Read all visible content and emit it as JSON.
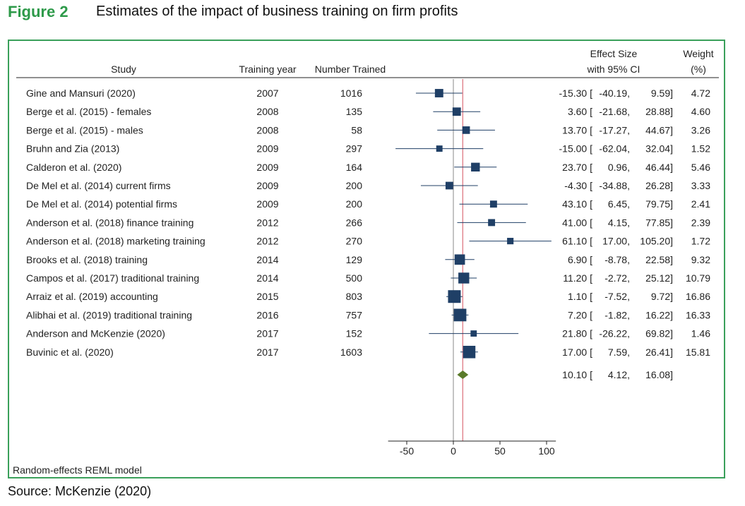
{
  "figure": {
    "label": "Figure 2",
    "title": "Estimates of the impact of business training on firm profits",
    "source": "Source: McKenzie (2020)",
    "model_note": "Random-effects REML model"
  },
  "columns": {
    "study": "Study",
    "year": "Training year",
    "trained": "Number Trained",
    "effect_line1": "Effect Size",
    "effect_line2": "with 95% CI",
    "weight_line1": "Weight",
    "weight_line2": "(%)"
  },
  "colors": {
    "accent": "#2e9a4a",
    "frame": "#3aa05a",
    "marker": "#1f3f66",
    "pooled": "#5a7a2a",
    "pooled_line": "#e0808a",
    "zero_line": "#8a8a8a"
  },
  "chart_data": {
    "type": "forest",
    "xlim": [
      -70,
      110
    ],
    "xticks": [
      -50,
      0,
      50,
      100
    ],
    "studies": [
      {
        "study": "Gine and Mansuri (2020)",
        "year": "2007",
        "trained": "1016",
        "es": -15.3,
        "lo": -40.19,
        "hi": 9.59,
        "weight": 4.72,
        "es_text": "-15.30",
        "lo_text": "-40.19,",
        "hi_text": "9.59]",
        "weight_text": "4.72"
      },
      {
        "study": "Berge et al. (2015) - females",
        "year": "2008",
        "trained": "135",
        "es": 3.6,
        "lo": -21.68,
        "hi": 28.88,
        "weight": 4.6,
        "es_text": "3.60",
        "lo_text": "-21.68,",
        "hi_text": "28.88]",
        "weight_text": "4.60"
      },
      {
        "study": "Berge et al. (2015) - males",
        "year": "2008",
        "trained": "58",
        "es": 13.7,
        "lo": -17.27,
        "hi": 44.67,
        "weight": 3.26,
        "es_text": "13.70",
        "lo_text": "-17.27,",
        "hi_text": "44.67]",
        "weight_text": "3.26"
      },
      {
        "study": "Bruhn and Zia (2013)",
        "year": "2009",
        "trained": "297",
        "es": -15.0,
        "lo": -62.04,
        "hi": 32.04,
        "weight": 1.52,
        "es_text": "-15.00",
        "lo_text": "-62.04,",
        "hi_text": "32.04]",
        "weight_text": "1.52"
      },
      {
        "study": "Calderon et al. (2020)",
        "year": "2009",
        "trained": "164",
        "es": 23.7,
        "lo": 0.96,
        "hi": 46.44,
        "weight": 5.46,
        "es_text": "23.70",
        "lo_text": "0.96,",
        "hi_text": "46.44]",
        "weight_text": "5.46"
      },
      {
        "study": "De Mel et al. (2014) current firms",
        "year": "2009",
        "trained": "200",
        "es": -4.3,
        "lo": -34.88,
        "hi": 26.28,
        "weight": 3.33,
        "es_text": "-4.30",
        "lo_text": "-34.88,",
        "hi_text": "26.28]",
        "weight_text": "3.33"
      },
      {
        "study": "De Mel et al. (2014) potential firms",
        "year": "2009",
        "trained": "200",
        "es": 43.1,
        "lo": 6.45,
        "hi": 79.75,
        "weight": 2.41,
        "es_text": "43.10",
        "lo_text": "6.45,",
        "hi_text": "79.75]",
        "weight_text": "2.41"
      },
      {
        "study": "Anderson et al. (2018) finance training",
        "year": "2012",
        "trained": "266",
        "es": 41.0,
        "lo": 4.15,
        "hi": 77.85,
        "weight": 2.39,
        "es_text": "41.00",
        "lo_text": "4.15,",
        "hi_text": "77.85]",
        "weight_text": "2.39"
      },
      {
        "study": "Anderson et al. (2018) marketing training",
        "year": "2012",
        "trained": "270",
        "es": 61.1,
        "lo": 17.0,
        "hi": 105.2,
        "weight": 1.72,
        "es_text": "61.10",
        "lo_text": "17.00,",
        "hi_text": "105.20]",
        "weight_text": "1.72"
      },
      {
        "study": "Brooks et al. (2018) training",
        "year": "2014",
        "trained": "129",
        "es": 6.9,
        "lo": -8.78,
        "hi": 22.58,
        "weight": 9.32,
        "es_text": "6.90",
        "lo_text": "-8.78,",
        "hi_text": "22.58]",
        "weight_text": "9.32"
      },
      {
        "study": "Campos et al. (2017) traditional training",
        "year": "2014",
        "trained": "500",
        "es": 11.2,
        "lo": -2.72,
        "hi": 25.12,
        "weight": 10.79,
        "es_text": "11.20",
        "lo_text": "-2.72,",
        "hi_text": "25.12]",
        "weight_text": "10.79"
      },
      {
        "study": "Arraiz et al. (2019) accounting",
        "year": "2015",
        "trained": "803",
        "es": 1.1,
        "lo": -7.52,
        "hi": 9.72,
        "weight": 16.86,
        "es_text": "1.10",
        "lo_text": "-7.52,",
        "hi_text": "9.72]",
        "weight_text": "16.86"
      },
      {
        "study": "Alibhai et al. (2019) traditional training",
        "year": "2016",
        "trained": "757",
        "es": 7.2,
        "lo": -1.82,
        "hi": 16.22,
        "weight": 16.33,
        "es_text": "7.20",
        "lo_text": "-1.82,",
        "hi_text": "16.22]",
        "weight_text": "16.33"
      },
      {
        "study": "Anderson and McKenzie (2020)",
        "year": "2017",
        "trained": "152",
        "es": 21.8,
        "lo": -26.22,
        "hi": 69.82,
        "weight": 1.46,
        "es_text": "21.80",
        "lo_text": "-26.22,",
        "hi_text": "69.82]",
        "weight_text": "1.46"
      },
      {
        "study": "Buvinic et al. (2020)",
        "year": "2017",
        "trained": "1603",
        "es": 17.0,
        "lo": 7.59,
        "hi": 26.41,
        "weight": 15.81,
        "es_text": "17.00",
        "lo_text": "7.59,",
        "hi_text": "26.41]",
        "weight_text": "15.81"
      }
    ],
    "pooled": {
      "es": 10.1,
      "lo": 4.12,
      "hi": 16.08,
      "es_text": "10.10",
      "lo_text": "4.12,",
      "hi_text": "16.08]"
    }
  }
}
